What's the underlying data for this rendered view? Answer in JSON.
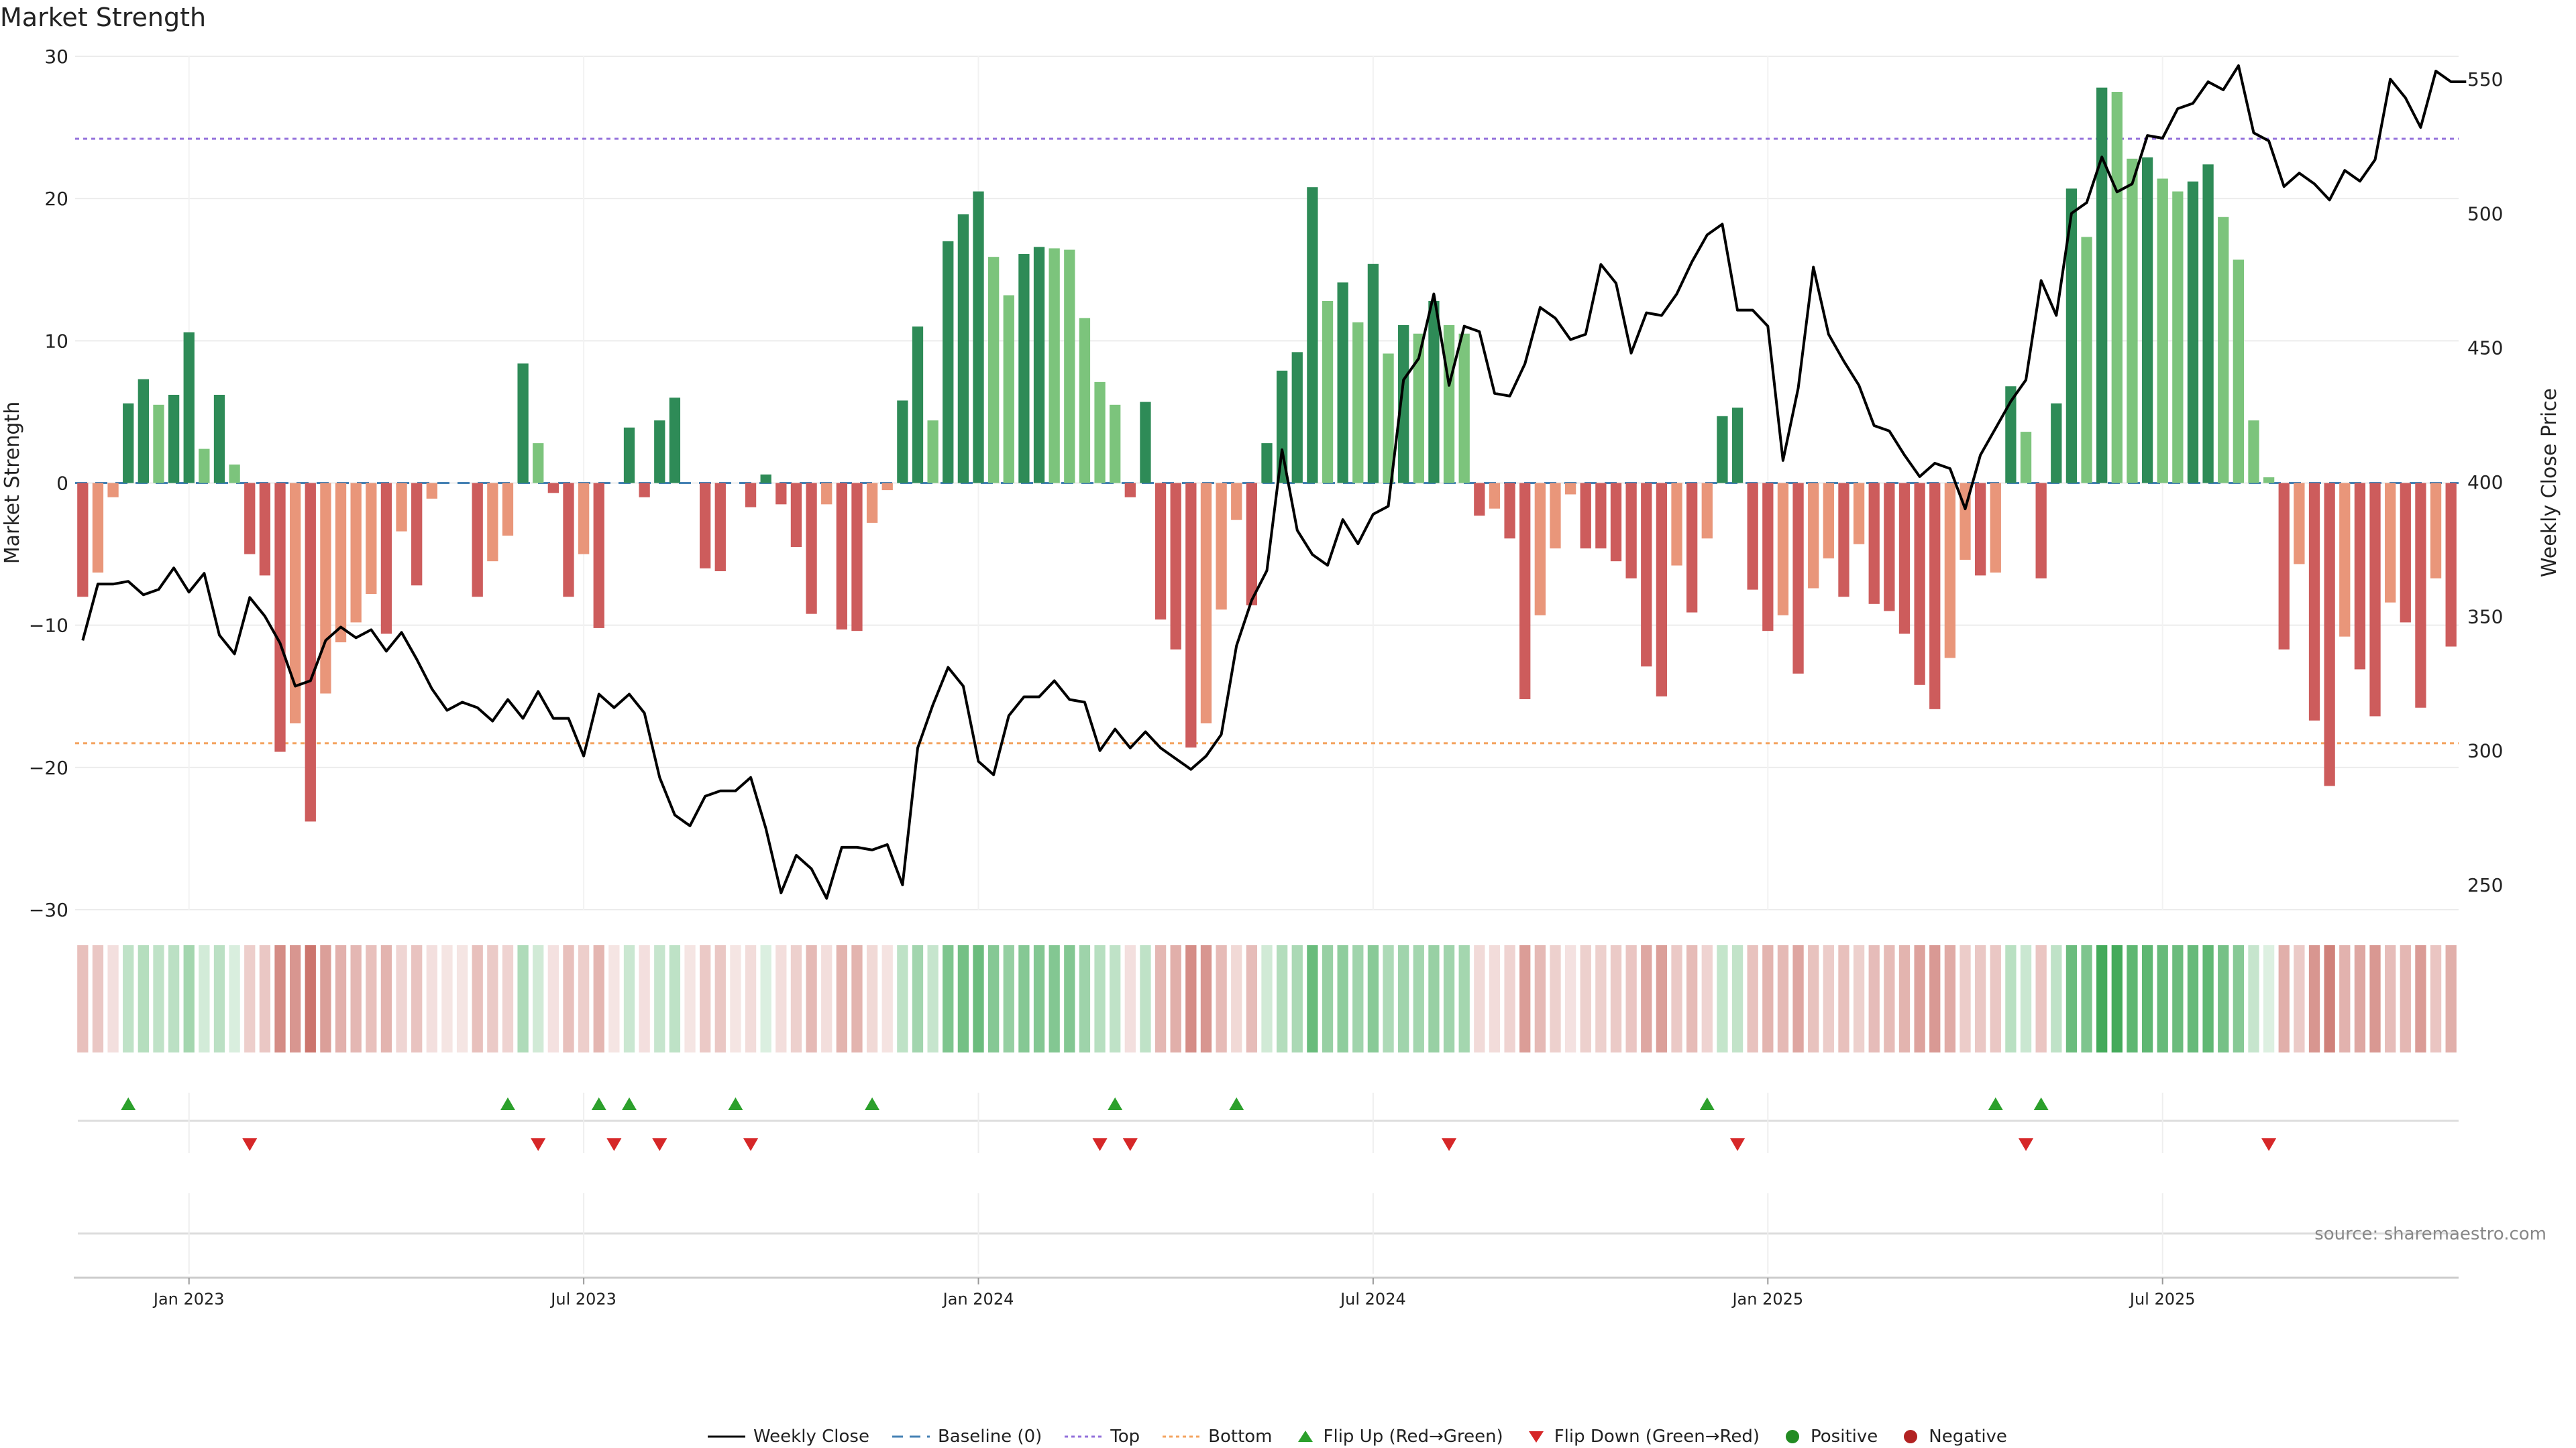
{
  "title": "Market Strength",
  "source": "source: sharemaestro.com",
  "colors": {
    "pos_strong": "#2e8b57",
    "pos_light": "#7cc47c",
    "neg_strong": "#cd5c5c",
    "neg_light": "#e9967a",
    "line": "#000000",
    "baseline": "#4682b4",
    "top": "#9370db",
    "bottom": "#f4a460",
    "flip_up": "#2ca02c",
    "flip_down": "#d62728",
    "positive": "#228b22",
    "negative": "#b22222"
  },
  "legend": [
    {
      "label": "Weekly Close",
      "kind": "line"
    },
    {
      "label": "Baseline (0)",
      "kind": "dash"
    },
    {
      "label": "Top",
      "kind": "dot-top"
    },
    {
      "label": "Bottom",
      "kind": "dot-bottom"
    },
    {
      "label": "Flip Up (Red→Green)",
      "kind": "tri-up"
    },
    {
      "label": "Flip Down (Green→Red)",
      "kind": "tri-down"
    },
    {
      "label": "Positive",
      "kind": "circle-pos"
    },
    {
      "label": "Negative",
      "kind": "circle-neg"
    }
  ],
  "chart_data": {
    "type": "bar",
    "title": "Market Strength",
    "ylabel": "Market Strength",
    "y2label": "Weekly Close Price",
    "ylim": [
      -30,
      30
    ],
    "y2lim": [
      240,
      555
    ],
    "yticks": [
      "30",
      "20",
      "10",
      "0",
      "−10",
      "−20",
      "−30"
    ],
    "y2ticks": [
      "550",
      "500",
      "450",
      "400",
      "350",
      "300",
      "250"
    ],
    "top_line": 24.2,
    "bottom_line": -18.3,
    "x_date_labels": [
      "Jan 2023",
      "Jul 2023",
      "Jan 2024",
      "Jul 2024",
      "Jan 2025",
      "Jul 2025"
    ],
    "x_date_label_index": [
      7.5,
      33.5,
      59.5,
      85.5,
      111.5,
      137.5
    ],
    "series": [
      {
        "name": "Market Strength",
        "values": [
          -8,
          -6.3,
          -1,
          5.6,
          7.3,
          5.5,
          6.2,
          10.6,
          2.4,
          6.2,
          1.3,
          -5,
          -6.5,
          -18.9,
          -16.9,
          -23.8,
          -14.8,
          -11.2,
          -9.8,
          -7.8,
          -10.6,
          -3.4,
          -7.2,
          -1.1,
          0,
          0,
          -8,
          -5.5,
          -3.7,
          8.4,
          2.8,
          -0.7,
          -8,
          -5,
          -10.2,
          0,
          3.9,
          -1,
          4.4,
          6,
          0,
          -6,
          -6.2,
          0,
          -1.7,
          0.6,
          -1.5,
          -4.5,
          -9.2,
          -1.5,
          -10.3,
          -10.4,
          -2.8,
          -0.5,
          5.8,
          11,
          4.4,
          17,
          18.9,
          20.5,
          15.9,
          13.2,
          16.1,
          16.6,
          16.5,
          16.4,
          11.6,
          7.1,
          5.5,
          -1,
          5.7,
          -9.6,
          -11.7,
          -18.6,
          -16.9,
          -8.9,
          -2.6,
          -8.6,
          2.8,
          7.9,
          9.2,
          20.8,
          12.8,
          14.1,
          11.3,
          15.4,
          9.1,
          11.1,
          10.5,
          12.8,
          11.1,
          10.5,
          -2.3,
          -1.8,
          -3.9,
          -15.2,
          -9.3,
          -4.6,
          -0.8,
          -4.6,
          -4.6,
          -5.5,
          -6.7,
          -12.9,
          -15,
          -5.8,
          -9.1,
          -3.9,
          4.7,
          5.3,
          -7.5,
          -10.4,
          -9.3,
          -13.4,
          -7.4,
          -5.3,
          -8,
          -4.3,
          -8.5,
          -9,
          -10.6,
          -14.2,
          -15.9,
          -12.3,
          -5.4,
          -6.5,
          -6.3,
          6.8,
          3.6,
          -6.7,
          5.6,
          20.7,
          17.3,
          27.8,
          27.5,
          22.8,
          22.9,
          21.4,
          20.5,
          21.2,
          22.4,
          18.7,
          15.7,
          4.4,
          0.4,
          -11.7,
          -5.7,
          -16.7,
          -21.3,
          -10.8,
          -13.1,
          -16.4,
          -8.4,
          -9.8,
          -15.8,
          -6.7,
          -11.5
        ]
      },
      {
        "name": "Weekly Close",
        "values": [
          341,
          362,
          362,
          363,
          358,
          360,
          368,
          359,
          366,
          343,
          336,
          357,
          350,
          340,
          324,
          326,
          341,
          346,
          342,
          345,
          337,
          344,
          334,
          323,
          315,
          318,
          316,
          311,
          319,
          312,
          322,
          312,
          312,
          298,
          321,
          316,
          321,
          314,
          290,
          276,
          272,
          283,
          285,
          285,
          290,
          271,
          247,
          261,
          256,
          245,
          264,
          264,
          263,
          265,
          250,
          301,
          317,
          331,
          324,
          296,
          291,
          313,
          320,
          320,
          326,
          319,
          318,
          300,
          308,
          301,
          307,
          301,
          297,
          293,
          298,
          306,
          339,
          356,
          367,
          412,
          382,
          373,
          369,
          386,
          377,
          388,
          391,
          438,
          446,
          470,
          436,
          458,
          456,
          433,
          432,
          444,
          465,
          461,
          453,
          455,
          481,
          474,
          448,
          463,
          462,
          470,
          482,
          492,
          496,
          464,
          464,
          458,
          408,
          435,
          480,
          455,
          445,
          436,
          421,
          419,
          410,
          402,
          407,
          405,
          390,
          410,
          420,
          430,
          438,
          475,
          462,
          500,
          504,
          521,
          508,
          511,
          529,
          528,
          539,
          541,
          549,
          546,
          555,
          530,
          527,
          510,
          515,
          511,
          505,
          516,
          512,
          520,
          550,
          543,
          532,
          553,
          549,
          549
        ]
      }
    ],
    "flip_up_index": [
      3,
      28,
      34,
      36,
      43,
      52,
      68,
      76,
      107,
      126,
      129
    ],
    "flip_down_index": [
      11,
      30,
      35,
      38,
      44,
      67,
      69,
      90,
      109,
      128,
      144
    ]
  }
}
